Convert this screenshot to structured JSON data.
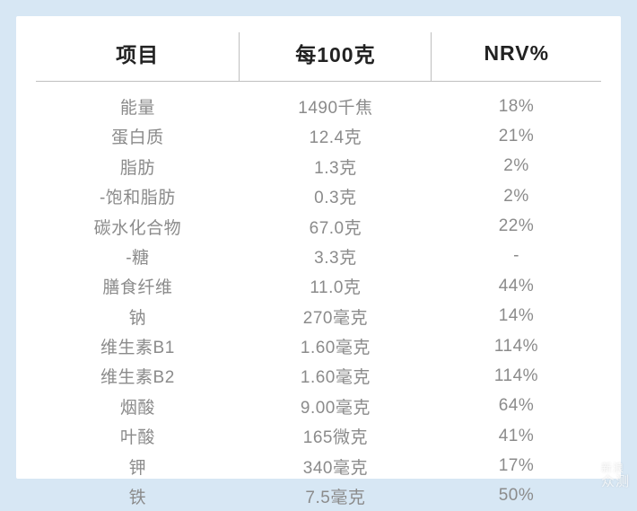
{
  "colors": {
    "page_background": "#d7e7f4",
    "card_background": "#ffffff",
    "header_text": "#222222",
    "body_text": "#8b8b8b",
    "divider": "#bfbfbf"
  },
  "typography": {
    "header_fontsize_pt": 17,
    "body_fontsize_pt": 14,
    "font_family": "PingFang SC"
  },
  "table": {
    "type": "table",
    "columns": [
      "项目",
      "每100克",
      "NRV%"
    ],
    "column_widths_pct": [
      36,
      34,
      30
    ],
    "column_align": [
      "center",
      "center",
      "center"
    ],
    "rows": [
      [
        "能量",
        "1490千焦",
        "18%"
      ],
      [
        "蛋白质",
        "12.4克",
        "21%"
      ],
      [
        "脂肪",
        "1.3克",
        "2%"
      ],
      [
        "-饱和脂肪",
        "0.3克",
        "2%"
      ],
      [
        "碳水化合物",
        "67.0克",
        "22%"
      ],
      [
        "-糖",
        "3.3克",
        "-"
      ],
      [
        "膳食纤维",
        "11.0克",
        "44%"
      ],
      [
        "钠",
        "270毫克",
        "14%"
      ],
      [
        "维生素B1",
        "1.60毫克",
        "114%"
      ],
      [
        "维生素B2",
        "1.60毫克",
        "114%"
      ],
      [
        "烟酸",
        "9.00毫克",
        "64%"
      ],
      [
        "叶酸",
        "165微克",
        "41%"
      ],
      [
        "钾",
        "340毫克",
        "17%"
      ],
      [
        "铁",
        "7.5毫克",
        "50%"
      ]
    ]
  },
  "watermark": {
    "line1": "新浪",
    "line2": "众测"
  }
}
